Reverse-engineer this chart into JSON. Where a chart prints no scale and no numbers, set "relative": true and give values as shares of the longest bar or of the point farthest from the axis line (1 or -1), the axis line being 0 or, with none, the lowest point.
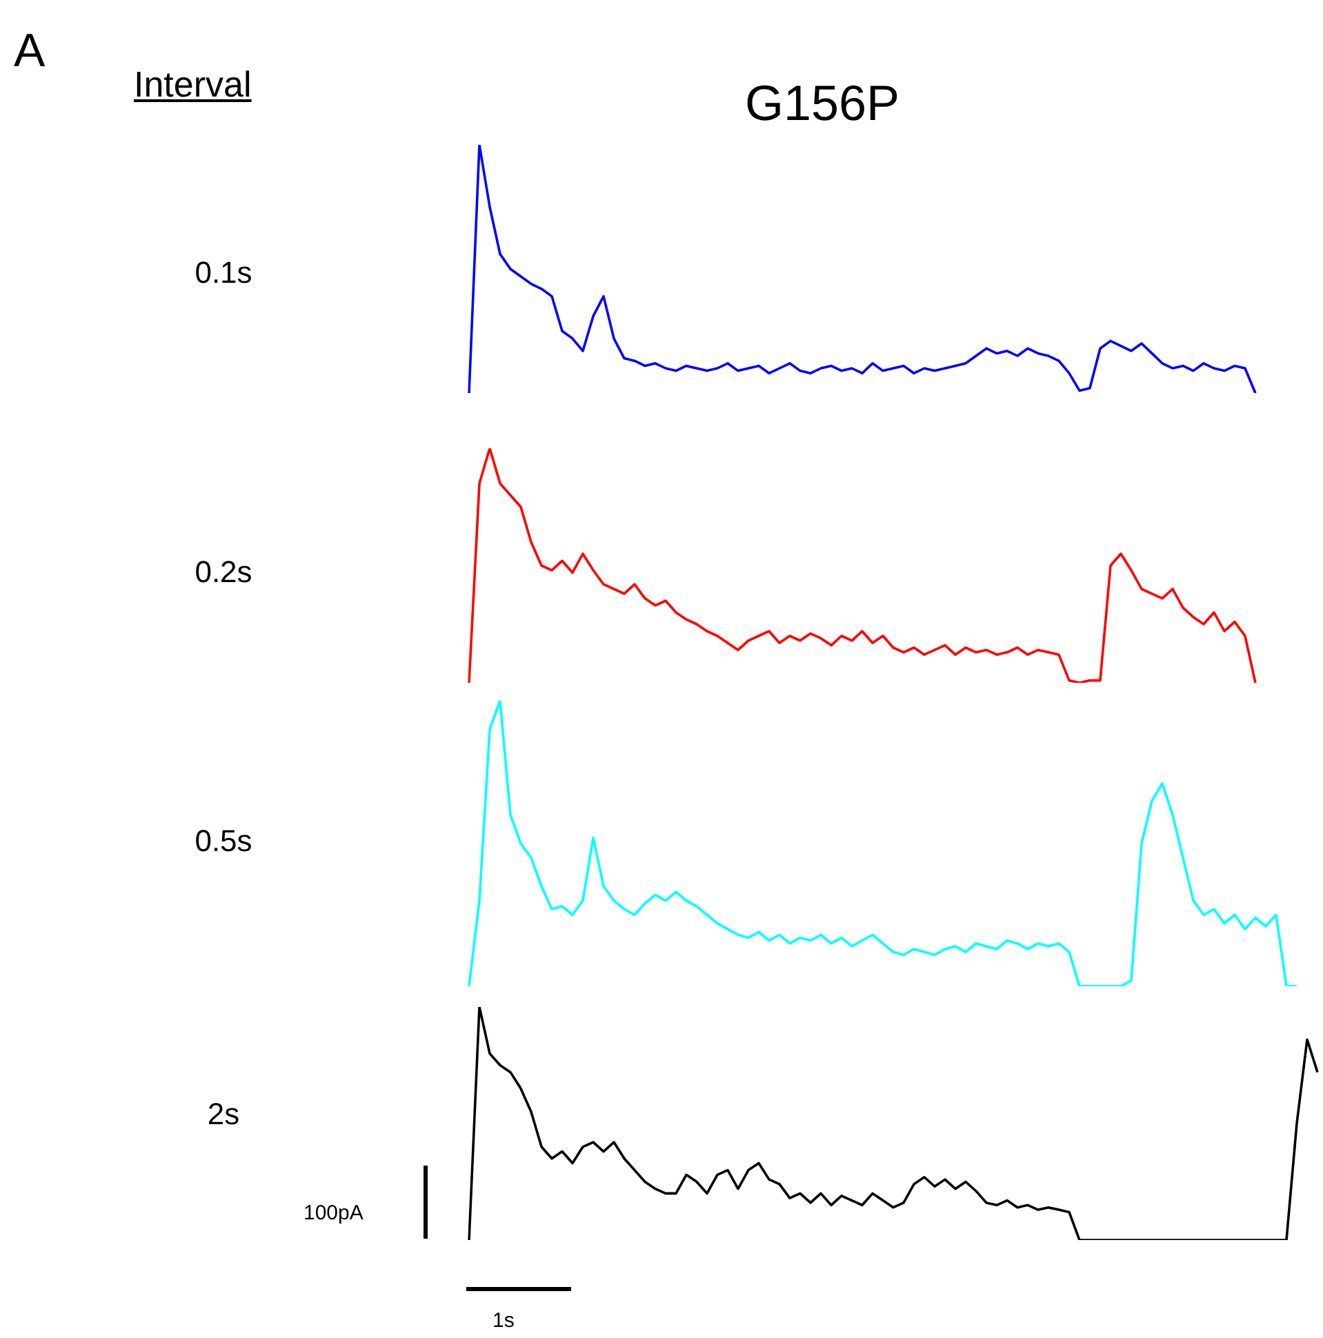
{
  "chart_data": [
    {
      "type": "line",
      "title": "G156P",
      "relative": true,
      "legend": false,
      "grid": false,
      "marker": "none",
      "annotations": [
        "A",
        "Interval"
      ],
      "categories": [
        null,
        null,
        null,
        null,
        null,
        null,
        null,
        null,
        null,
        null,
        null,
        null,
        null,
        null,
        null,
        null,
        null,
        null,
        null,
        null,
        null,
        null,
        null,
        null,
        null,
        null,
        null,
        null,
        null,
        null,
        null,
        null,
        null,
        null,
        null,
        null,
        null,
        null,
        null,
        null,
        null,
        null,
        null,
        null,
        null,
        null,
        null,
        null,
        null,
        null,
        null,
        null,
        null,
        null,
        null,
        null,
        null,
        null,
        null,
        null,
        null,
        null,
        null,
        null,
        null,
        null,
        null,
        null,
        null,
        null,
        null,
        null,
        null,
        null,
        null,
        null,
        null,
        null,
        null,
        null,
        null,
        null,
        null
      ],
      "series": [
        {
          "name": "0.1s",
          "color": "#0000ff",
          "values": [
            0,
            1,
            0.75,
            0.56,
            0.5,
            0.47,
            0.44,
            0.42,
            0.39,
            0.25,
            0.22,
            0.17,
            0.31,
            0.39,
            0.22,
            0.14,
            0.13,
            0.11,
            0.12,
            0.1,
            0.09,
            0.11,
            0.1,
            0.09,
            0.1,
            0.12,
            0.09,
            0.1,
            0.11,
            0.08,
            0.1,
            0.12,
            0.09,
            0.08,
            0.1,
            0.11,
            0.09,
            0.1,
            0.08,
            0.12,
            0.09,
            0.1,
            0.11,
            0.08,
            0.1,
            0.09,
            0.1,
            0.11,
            0.12,
            0.15,
            0.18,
            0.16,
            0.17,
            0.15,
            0.18,
            0.16,
            0.15,
            0.13,
            0.08,
            0.01,
            0.02,
            0.18,
            0.21,
            0.19,
            0.17,
            0.2,
            0.16,
            0.12,
            0.1,
            0.11,
            0.09,
            0.12,
            0.1,
            0.09,
            0.11,
            0.1,
            0,
            null,
            null,
            null,
            null,
            null,
            null
          ]
        }
      ]
    },
    {
      "type": "line",
      "relative": true,
      "legend": false,
      "grid": false,
      "marker": "none",
      "categories": [
        null,
        null,
        null,
        null,
        null,
        null,
        null,
        null,
        null,
        null,
        null,
        null,
        null,
        null,
        null,
        null,
        null,
        null,
        null,
        null,
        null,
        null,
        null,
        null,
        null,
        null,
        null,
        null,
        null,
        null,
        null,
        null,
        null,
        null,
        null,
        null,
        null,
        null,
        null,
        null,
        null,
        null,
        null,
        null,
        null,
        null,
        null,
        null,
        null,
        null,
        null,
        null,
        null,
        null,
        null,
        null,
        null,
        null,
        null,
        null,
        null,
        null,
        null,
        null,
        null,
        null,
        null,
        null,
        null,
        null,
        null,
        null,
        null,
        null,
        null,
        null,
        null,
        null,
        null,
        null,
        null,
        null,
        null
      ],
      "series": [
        {
          "name": "0.2s",
          "color": "#ff0000",
          "values": [
            0,
            0.85,
            1,
            0.85,
            0.8,
            0.75,
            0.6,
            0.5,
            0.48,
            0.52,
            0.47,
            0.55,
            0.48,
            0.42,
            0.4,
            0.38,
            0.42,
            0.36,
            0.33,
            0.35,
            0.3,
            0.27,
            0.25,
            0.22,
            0.2,
            0.17,
            0.14,
            0.18,
            0.2,
            0.22,
            0.17,
            0.2,
            0.18,
            0.21,
            0.19,
            0.16,
            0.2,
            0.18,
            0.22,
            0.17,
            0.2,
            0.15,
            0.13,
            0.15,
            0.12,
            0.14,
            0.16,
            0.12,
            0.15,
            0.13,
            0.14,
            0.12,
            0.13,
            0.15,
            0.12,
            0.14,
            0.13,
            0.12,
            0.01,
            0,
            0.01,
            0.01,
            0.5,
            0.55,
            0.48,
            0.4,
            0.38,
            0.36,
            0.4,
            0.32,
            0.28,
            0.25,
            0.3,
            0.22,
            0.26,
            0.2,
            0,
            null,
            null,
            null,
            null,
            null,
            null
          ]
        }
      ]
    },
    {
      "type": "line",
      "relative": true,
      "legend": false,
      "grid": false,
      "marker": "none",
      "categories": [
        null,
        null,
        null,
        null,
        null,
        null,
        null,
        null,
        null,
        null,
        null,
        null,
        null,
        null,
        null,
        null,
        null,
        null,
        null,
        null,
        null,
        null,
        null,
        null,
        null,
        null,
        null,
        null,
        null,
        null,
        null,
        null,
        null,
        null,
        null,
        null,
        null,
        null,
        null,
        null,
        null,
        null,
        null,
        null,
        null,
        null,
        null,
        null,
        null,
        null,
        null,
        null,
        null,
        null,
        null,
        null,
        null,
        null,
        null,
        null,
        null,
        null,
        null,
        null,
        null,
        null,
        null,
        null,
        null,
        null,
        null,
        null,
        null,
        null,
        null,
        null,
        null,
        null,
        null,
        null,
        null,
        null,
        null
      ],
      "series": [
        {
          "name": "0.5s",
          "color": "#00ffff",
          "values": [
            0,
            0.3,
            0.9,
            1,
            0.6,
            0.5,
            0.45,
            0.35,
            0.27,
            0.28,
            0.25,
            0.3,
            0.52,
            0.35,
            0.3,
            0.27,
            0.25,
            0.29,
            0.32,
            0.3,
            0.33,
            0.3,
            0.28,
            0.25,
            0.22,
            0.2,
            0.18,
            0.17,
            0.19,
            0.16,
            0.18,
            0.15,
            0.17,
            0.16,
            0.18,
            0.15,
            0.17,
            0.14,
            0.16,
            0.18,
            0.15,
            0.12,
            0.11,
            0.13,
            0.12,
            0.11,
            0.13,
            0.14,
            0.12,
            0.15,
            0.14,
            0.13,
            0.16,
            0.15,
            0.13,
            0.15,
            0.14,
            0.15,
            0.12,
            0,
            0,
            0,
            0,
            0,
            0.02,
            0.5,
            0.65,
            0.71,
            0.6,
            0.45,
            0.3,
            0.25,
            0.27,
            0.22,
            0.25,
            0.2,
            0.24,
            0.21,
            0.25,
            0,
            0,
            null,
            null
          ]
        }
      ]
    },
    {
      "type": "line",
      "relative": true,
      "legend": false,
      "grid": false,
      "marker": "none",
      "annotations": [
        "100pA",
        "1s"
      ],
      "categories": [
        null,
        null,
        null,
        null,
        null,
        null,
        null,
        null,
        null,
        null,
        null,
        null,
        null,
        null,
        null,
        null,
        null,
        null,
        null,
        null,
        null,
        null,
        null,
        null,
        null,
        null,
        null,
        null,
        null,
        null,
        null,
        null,
        null,
        null,
        null,
        null,
        null,
        null,
        null,
        null,
        null,
        null,
        null,
        null,
        null,
        null,
        null,
        null,
        null,
        null,
        null,
        null,
        null,
        null,
        null,
        null,
        null,
        null,
        null,
        null,
        null,
        null,
        null,
        null,
        null,
        null,
        null,
        null,
        null,
        null,
        null,
        null,
        null,
        null,
        null,
        null,
        null,
        null,
        null,
        null,
        null,
        null,
        null
      ],
      "series": [
        {
          "name": "2s",
          "color": "#000000",
          "values": [
            0,
            1,
            0.8,
            0.75,
            0.72,
            0.65,
            0.55,
            0.4,
            0.35,
            0.38,
            0.33,
            0.4,
            0.42,
            0.38,
            0.42,
            0.35,
            0.3,
            0.25,
            0.22,
            0.2,
            0.2,
            0.28,
            0.25,
            0.2,
            0.28,
            0.3,
            0.22,
            0.3,
            0.33,
            0.26,
            0.24,
            0.18,
            0.2,
            0.16,
            0.2,
            0.15,
            0.19,
            0.17,
            0.15,
            0.2,
            0.17,
            0.14,
            0.16,
            0.24,
            0.27,
            0.23,
            0.26,
            0.22,
            0.25,
            0.21,
            0.16,
            0.15,
            0.17,
            0.14,
            0.15,
            0.13,
            0.14,
            0.13,
            0.12,
            0,
            0,
            0,
            0,
            0,
            0,
            0,
            0,
            0,
            0,
            0,
            0,
            0,
            0,
            0,
            0,
            0,
            0,
            0,
            0,
            0,
            0.5,
            0.86,
            0.72
          ]
        }
      ]
    }
  ]
}
